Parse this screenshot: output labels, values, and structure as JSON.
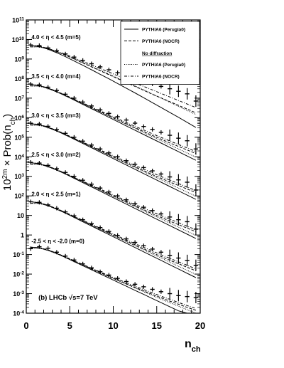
{
  "chart_data": {
    "type": "line",
    "xlabel": "n",
    "xlabel_sub": "ch",
    "ylabel_prefix": "10",
    "ylabel_sup": "2m",
    "ylabel_mid": " × Prob(n",
    "ylabel_sub": "ch",
    "ylabel_suffix": ")",
    "xlim": [
      0,
      20
    ],
    "ylim_log10": [
      -4,
      11
    ],
    "log_y": true,
    "x_ticks": [
      0,
      5,
      10,
      15,
      20
    ],
    "y_tick_labels": [
      {
        "mant": "10",
        "exp": "-4",
        "log": -4
      },
      {
        "mant": "10",
        "exp": "-3",
        "log": -3
      },
      {
        "mant": "10",
        "exp": "-2",
        "log": -2
      },
      {
        "mant": "10",
        "exp": "-1",
        "log": -1
      },
      {
        "mant": "1",
        "exp": "",
        "log": 0
      },
      {
        "mant": "10",
        "exp": "",
        "log": 1
      },
      {
        "mant": "10",
        "exp": "2",
        "log": 2
      },
      {
        "mant": "10",
        "exp": "3",
        "log": 3
      },
      {
        "mant": "10",
        "exp": "4",
        "log": 4
      },
      {
        "mant": "10",
        "exp": "5",
        "log": 5
      },
      {
        "mant": "10",
        "exp": "6",
        "log": 6
      },
      {
        "mant": "10",
        "exp": "7",
        "log": 7
      },
      {
        "mant": "10",
        "exp": "8",
        "log": 8
      },
      {
        "mant": "10",
        "exp": "9",
        "log": 9
      },
      {
        "mant": "10",
        "exp": "10",
        "log": 10
      },
      {
        "mant": "10",
        "exp": "11",
        "log": 11
      }
    ],
    "annotation": "(b) LHCb √s=7 TeV",
    "legend": {
      "placement": "top-right",
      "entries": [
        {
          "label": "PYTHIA6 (Perugia0)",
          "style": "solid"
        },
        {
          "label": "PYTHIA6 (NOCR)",
          "style": "dashed"
        },
        {
          "label": "No diffraction",
          "style": "header"
        },
        {
          "label": "PYTHIA6 (Perugia0)",
          "style": "dotted"
        },
        {
          "label": "PYTHIA6 (NOCR)",
          "style": "dashdot"
        }
      ]
    },
    "bins": [
      {
        "label": "-2.5 < η < -2.0 (m=0)",
        "m": 0,
        "data_log10": [
          -0.7,
          -0.6,
          -0.68,
          -0.88,
          -1.08,
          -1.28,
          -1.48,
          -1.68,
          -1.88,
          -2.05,
          -2.22,
          -2.38,
          -2.52,
          -2.65,
          -2.78,
          -2.9,
          -3.0,
          -3.1,
          -3.15,
          -3.2
        ],
        "perugia0_log10": [
          -0.62,
          -0.66,
          -0.78,
          -0.95,
          -1.15,
          -1.36,
          -1.57,
          -1.78,
          -1.99,
          -2.2,
          -2.41,
          -2.62,
          -2.83,
          -3.04,
          -3.25,
          -3.46,
          -3.67,
          -3.88,
          -4.0,
          -4.0
        ],
        "nocr_log10": [
          -0.62,
          -0.65,
          -0.76,
          -0.93,
          -1.12,
          -1.32,
          -1.52,
          -1.72,
          -1.92,
          -2.12,
          -2.31,
          -2.5,
          -2.68,
          -2.86,
          -3.04,
          -3.21,
          -3.38,
          -3.54,
          -3.7,
          -3.85
        ],
        "nodiff_perugia0_log10": [
          -0.66,
          -0.68,
          -0.79,
          -0.96,
          -1.15,
          -1.35,
          -1.55,
          -1.75,
          -1.94,
          -2.14,
          -2.33,
          -2.52,
          -2.71,
          -2.9,
          -3.09,
          -3.28,
          -3.46,
          -3.64,
          -3.82,
          -4.0
        ],
        "nodiff_nocr_log10": [
          -0.66,
          -0.67,
          -0.77,
          -0.94,
          -1.13,
          -1.32,
          -1.51,
          -1.7,
          -1.89,
          -2.08,
          -2.26,
          -2.44,
          -2.62,
          -2.79,
          -2.96,
          -3.13,
          -3.29,
          -3.45,
          -3.61,
          -3.76
        ]
      },
      {
        "label": "2.0 < η < 2.5 (m=1)",
        "m": 1,
        "data_log10": [
          1.7,
          1.67,
          1.54,
          1.37,
          1.18,
          0.98,
          0.78,
          0.58,
          0.38,
          0.18,
          -0.02,
          -0.2,
          -0.38,
          -0.55,
          -0.72,
          -0.88,
          -1.04,
          -1.18,
          -1.3,
          -1.55
        ],
        "perugia0_log10": [
          1.7,
          1.64,
          1.5,
          1.32,
          1.12,
          0.9,
          0.68,
          0.46,
          0.24,
          0.02,
          -0.2,
          -0.42,
          -0.64,
          -0.86,
          -1.08,
          -1.3,
          -1.52,
          -1.74,
          -1.96,
          -2.18
        ],
        "nocr_log10": [
          1.7,
          1.65,
          1.52,
          1.35,
          1.15,
          0.94,
          0.73,
          0.52,
          0.31,
          0.1,
          -0.11,
          -0.31,
          -0.51,
          -0.71,
          -0.91,
          -1.1,
          -1.29,
          -1.47,
          -1.65,
          -1.83
        ],
        "nodiff_perugia0_log10": [
          1.62,
          1.61,
          1.49,
          1.32,
          1.13,
          0.92,
          0.71,
          0.5,
          0.29,
          0.08,
          -0.13,
          -0.34,
          -0.55,
          -0.76,
          -0.97,
          -1.18,
          -1.39,
          -1.6,
          -1.81,
          -2.02
        ],
        "nodiff_nocr_log10": [
          1.62,
          1.62,
          1.51,
          1.34,
          1.15,
          0.95,
          0.75,
          0.55,
          0.35,
          0.15,
          -0.05,
          -0.25,
          -0.44,
          -0.63,
          -0.82,
          -1.01,
          -1.19,
          -1.37,
          -1.55,
          -1.73
        ]
      },
      {
        "label": "2.5 < η < 3.0 (m=2)",
        "m": 2,
        "data_log10": [
          3.72,
          3.68,
          3.56,
          3.39,
          3.2,
          3.0,
          2.8,
          2.6,
          2.4,
          2.2,
          2.0,
          1.8,
          1.6,
          1.42,
          1.25,
          1.08,
          0.92,
          0.78,
          0.68,
          0.3
        ],
        "perugia0_log10": [
          3.7,
          3.64,
          3.5,
          3.32,
          3.12,
          2.9,
          2.68,
          2.46,
          2.24,
          2.02,
          1.8,
          1.58,
          1.36,
          1.14,
          0.92,
          0.7,
          0.48,
          0.26,
          0.04,
          -0.18
        ],
        "nocr_log10": [
          3.7,
          3.65,
          3.52,
          3.35,
          3.15,
          2.94,
          2.73,
          2.52,
          2.31,
          2.1,
          1.89,
          1.69,
          1.49,
          1.29,
          1.09,
          0.9,
          0.71,
          0.53,
          0.35,
          0.17
        ],
        "nodiff_perugia0_log10": [
          3.62,
          3.61,
          3.49,
          3.32,
          3.13,
          2.92,
          2.71,
          2.5,
          2.29,
          2.08,
          1.87,
          1.66,
          1.45,
          1.24,
          1.03,
          0.82,
          0.61,
          0.4,
          0.19,
          -0.02
        ],
        "nodiff_nocr_log10": [
          3.62,
          3.62,
          3.51,
          3.34,
          3.15,
          2.95,
          2.75,
          2.55,
          2.35,
          2.15,
          1.95,
          1.75,
          1.56,
          1.37,
          1.18,
          0.99,
          0.81,
          0.63,
          0.45,
          0.27
        ]
      },
      {
        "label": "3.0 < η < 3.5 (m=3)",
        "m": 3,
        "data_log10": [
          5.72,
          5.68,
          5.56,
          5.39,
          5.2,
          5.0,
          4.8,
          4.6,
          4.4,
          4.2,
          4.0,
          3.8,
          3.62,
          3.45,
          3.28,
          3.12,
          2.97,
          2.82,
          2.7,
          2.3
        ],
        "perugia0_log10": [
          5.7,
          5.64,
          5.5,
          5.32,
          5.12,
          4.9,
          4.68,
          4.46,
          4.24,
          4.02,
          3.8,
          3.58,
          3.36,
          3.14,
          2.92,
          2.7,
          2.48,
          2.26,
          2.04,
          1.82
        ],
        "nocr_log10": [
          5.7,
          5.65,
          5.52,
          5.35,
          5.15,
          4.94,
          4.73,
          4.52,
          4.31,
          4.1,
          3.89,
          3.69,
          3.49,
          3.29,
          3.09,
          2.9,
          2.71,
          2.53,
          2.35,
          2.17
        ],
        "nodiff_perugia0_log10": [
          5.62,
          5.61,
          5.49,
          5.32,
          5.13,
          4.92,
          4.71,
          4.5,
          4.29,
          4.08,
          3.87,
          3.66,
          3.45,
          3.24,
          3.03,
          2.82,
          2.61,
          2.4,
          2.19,
          1.98
        ],
        "nodiff_nocr_log10": [
          5.62,
          5.62,
          5.51,
          5.34,
          5.15,
          4.95,
          4.75,
          4.55,
          4.35,
          4.15,
          3.95,
          3.75,
          3.56,
          3.37,
          3.18,
          2.99,
          2.81,
          2.63,
          2.45,
          2.27
        ]
      },
      {
        "label": "3.5 < η < 4.0 (m=4)",
        "m": 4,
        "data_log10": [
          7.72,
          7.68,
          7.56,
          7.39,
          7.2,
          7.0,
          6.8,
          6.6,
          6.4,
          6.22,
          6.05,
          5.88,
          5.72,
          5.55,
          5.4,
          5.25,
          5.1,
          4.95,
          4.82,
          4.4
        ],
        "perugia0_log10": [
          7.7,
          7.64,
          7.5,
          7.32,
          7.12,
          6.9,
          6.68,
          6.46,
          6.24,
          6.02,
          5.8,
          5.58,
          5.36,
          5.14,
          4.92,
          4.7,
          4.48,
          4.26,
          4.04,
          3.82
        ],
        "nocr_log10": [
          7.7,
          7.65,
          7.52,
          7.35,
          7.15,
          6.94,
          6.73,
          6.52,
          6.31,
          6.1,
          5.89,
          5.69,
          5.49,
          5.29,
          5.09,
          4.9,
          4.71,
          4.53,
          4.35,
          4.17
        ],
        "nodiff_perugia0_log10": [
          7.62,
          7.61,
          7.49,
          7.32,
          7.13,
          6.92,
          6.71,
          6.5,
          6.29,
          6.08,
          5.87,
          5.66,
          5.45,
          5.24,
          5.03,
          4.82,
          4.61,
          4.4,
          4.19,
          3.98
        ],
        "nodiff_nocr_log10": [
          7.62,
          7.62,
          7.51,
          7.34,
          7.15,
          6.95,
          6.75,
          6.55,
          6.35,
          6.15,
          5.95,
          5.75,
          5.56,
          5.37,
          5.18,
          4.99,
          4.81,
          4.63,
          4.45,
          4.27
        ]
      },
      {
        "label": "4.0 < η < 4.5 (m=5)",
        "m": 5,
        "data_log10": [
          9.72,
          9.69,
          9.57,
          9.42,
          9.26,
          9.1,
          8.93,
          8.76,
          8.6,
          8.45,
          8.3,
          8.15,
          8.01,
          7.87,
          7.73,
          7.6,
          7.48,
          7.35,
          7.22,
          6.85
        ],
        "perugia0_log10": [
          9.7,
          9.64,
          9.5,
          9.32,
          9.12,
          8.9,
          8.68,
          8.45,
          8.22,
          7.99,
          7.75,
          7.51,
          7.27,
          7.02,
          6.77,
          6.52,
          6.27,
          6.02,
          5.76,
          5.5
        ],
        "nocr_log10": [
          9.7,
          9.66,
          9.54,
          9.38,
          9.2,
          9.0,
          8.8,
          8.6,
          8.4,
          8.2,
          8.0,
          7.8,
          7.6,
          7.4,
          7.2,
          7.01,
          6.82,
          6.63,
          6.44,
          6.25
        ],
        "nodiff_perugia0_log10": [
          9.62,
          9.62,
          9.52,
          9.37,
          9.2,
          9.01,
          8.82,
          8.63,
          8.43,
          8.23,
          8.03,
          7.83,
          7.62,
          7.42,
          7.21,
          7.0,
          6.79,
          6.58,
          6.37,
          6.16
        ],
        "nodiff_nocr_log10": [
          9.62,
          9.63,
          9.54,
          9.4,
          9.24,
          9.06,
          8.88,
          8.7,
          8.52,
          8.33,
          8.15,
          7.97,
          7.78,
          7.6,
          7.42,
          7.24,
          7.06,
          6.88,
          6.7,
          6.52
        ]
      }
    ]
  }
}
